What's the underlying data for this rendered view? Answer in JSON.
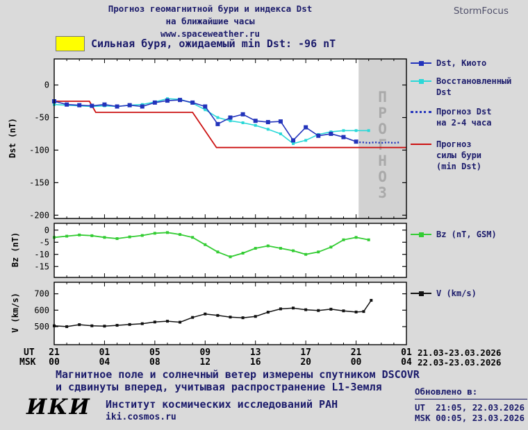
{
  "header": {
    "title": "Прогноз геомагнитной бури и индекса Dst",
    "subtitle": "на ближайшие часы",
    "url": "www.spaceweather.ru",
    "brand": "StormFocus"
  },
  "alert": {
    "label": "Сильная буря, ожидаемый min Dst: -96 nT",
    "swatch_color": "#ffff00"
  },
  "colors": {
    "dst": "#2233bb",
    "restored": "#2ad8d8",
    "forecast": "#2233bb",
    "storm": "#cc1111",
    "bz": "#33cc33",
    "v": "#111111",
    "band": "#d2d2d2",
    "band_text": "#a9a9a9"
  },
  "legend": {
    "dst_kyoto": "Dst, Киото",
    "dst_restored": "Восстановленный\nDst",
    "dst_forecast": "Прогноз Dst\nна 2-4 часа",
    "storm_forecast": "Прогноз\nсилы бури\n(min Dst)",
    "bz": "Bz (nT, GSM)",
    "v": "V (km/s)"
  },
  "xaxis": {
    "ut_label": "UT",
    "msk_label": "MSK",
    "ut_ticks": [
      "21",
      "01",
      "05",
      "09",
      "13",
      "17",
      "21",
      "01"
    ],
    "msk_ticks": [
      "00",
      "04",
      "08",
      "12",
      "16",
      "20",
      "00",
      "04"
    ],
    "ut_range": "21.03-23.03.2026",
    "msk_range": "22.03-23.03.2026"
  },
  "chart_data": {
    "type": "line",
    "x_unit": "hours from 21:00 UT 21.03.2026",
    "xlim": [
      0,
      28
    ],
    "xticks_hours": [
      0,
      4,
      8,
      12,
      16,
      20,
      24,
      28
    ],
    "forecast_band": {
      "start": 24.2,
      "end": 28,
      "label": "ПРОГНОЗ"
    },
    "panels": [
      {
        "name": "dst",
        "ylabel": "Dst (nT)",
        "ylim": [
          -205,
          40
        ],
        "yticks": [
          0,
          -50,
          -100,
          -150,
          -200
        ],
        "series": [
          {
            "id": "storm-forecast",
            "name": "Прогноз силы бури (min Dst)",
            "color": "#cc1111",
            "width": 1.8,
            "x": [
              0,
              2.8,
              3.3,
              11,
              12.9,
              28
            ],
            "y": [
              -25,
              -25,
              -42,
              -42,
              -96,
              -96
            ]
          },
          {
            "id": "dst-restored",
            "name": "Восстановленный Dst",
            "color": "#2ad8d8",
            "marker": "square",
            "marker_size": 4,
            "width": 1.6,
            "x": [
              0,
              1,
              2,
              3,
              4,
              5,
              6,
              7,
              8,
              9,
              10,
              11,
              12,
              13,
              14,
              15,
              16,
              17,
              18,
              19,
              20,
              21,
              22,
              23,
              24,
              25
            ],
            "y": [
              -30,
              -31,
              -32,
              -33,
              -32,
              -33,
              -31,
              -30,
              -26,
              -21,
              -22,
              -28,
              -38,
              -50,
              -55,
              -58,
              -62,
              -68,
              -75,
              -90,
              -85,
              -76,
              -72,
              -70,
              -70,
              -70
            ]
          },
          {
            "id": "dst-kyoto",
            "name": "Dst, Киото",
            "color": "#2233bb",
            "marker": "square",
            "marker_size": 6,
            "width": 1.6,
            "x": [
              0,
              1,
              2,
              3,
              4,
              5,
              6,
              7,
              8,
              9,
              10,
              11,
              12,
              13,
              14,
              15,
              16,
              17,
              18,
              19,
              20,
              21,
              22,
              23,
              24
            ],
            "y": [
              -25,
              -30,
              -31,
              -32,
              -30,
              -33,
              -31,
              -33,
              -27,
              -24,
              -23,
              -27,
              -33,
              -60,
              -50,
              -45,
              -55,
              -57,
              -56,
              -85,
              -65,
              -78,
              -75,
              -80,
              -87
            ]
          },
          {
            "id": "dst-forecast",
            "name": "Прогноз Dst на 2-4 часа",
            "color": "#2233bb",
            "style": "dotted",
            "width": 2.4,
            "x": [
              24,
              24.5,
              25,
              25.5,
              26,
              26.5,
              27,
              27.5
            ],
            "y": [
              -88,
              -88,
              -89,
              -88,
              -89,
              -88,
              -89,
              -88
            ]
          }
        ]
      },
      {
        "name": "bz",
        "ylabel": "Bz (nT)",
        "ylim": [
          -19.5,
          2.8
        ],
        "yticks": [
          0,
          -5,
          -10,
          -15
        ],
        "series": [
          {
            "id": "bz",
            "name": "Bz (nT, GSM)",
            "color": "#33cc33",
            "marker": "square",
            "marker_size": 4,
            "width": 1.8,
            "x": [
              0,
              1,
              2,
              3,
              4,
              5,
              6,
              7,
              8,
              9,
              10,
              11,
              12,
              13,
              14,
              15,
              16,
              17,
              18,
              19,
              20,
              21,
              22,
              23,
              24,
              25
            ],
            "y": [
              -3,
              -2.5,
              -2,
              -2.3,
              -3,
              -3.5,
              -2.8,
              -2.2,
              -1.3,
              -1,
              -1.8,
              -3,
              -6,
              -9,
              -11,
              -9.5,
              -7.5,
              -6.5,
              -7.5,
              -8.5,
              -10,
              -9,
              -7,
              -4,
              -3,
              -4
            ]
          }
        ]
      },
      {
        "name": "v",
        "ylabel": "V (km/s)",
        "ylim": [
          390,
          770
        ],
        "yticks": [
          500,
          600,
          700
        ],
        "series": [
          {
            "id": "v",
            "name": "V (km/s)",
            "color": "#111111",
            "marker": "square",
            "marker_size": 4,
            "width": 1.5,
            "x": [
              0,
              1,
              2,
              3,
              4,
              5,
              6,
              7,
              8,
              9,
              10,
              11,
              12,
              13,
              14,
              15,
              16,
              17,
              18,
              19,
              20,
              21,
              22,
              23,
              24,
              24.6,
              25.2
            ],
            "y": [
              505,
              500,
              512,
              505,
              503,
              508,
              513,
              518,
              528,
              533,
              527,
              556,
              577,
              568,
              558,
              554,
              562,
              588,
              608,
              613,
              603,
              598,
              606,
              596,
              589,
              592,
              660
            ]
          }
        ]
      }
    ]
  },
  "footer": {
    "note_line1": "Магнитное поле и солнечный ветер измерены спутником DSCOVR",
    "note_line2": "и сдвинуты вперед, учитывая распространение L1-Земля",
    "logo": "ИКИ",
    "institute": "Институт космических исследований РАН",
    "site": "iki.cosmos.ru",
    "updated_label": "Обновлено в:",
    "updated_ut": "UT  21:05, 22.03.2026",
    "updated_msk": "MSK 00:05, 23.03.2026"
  }
}
